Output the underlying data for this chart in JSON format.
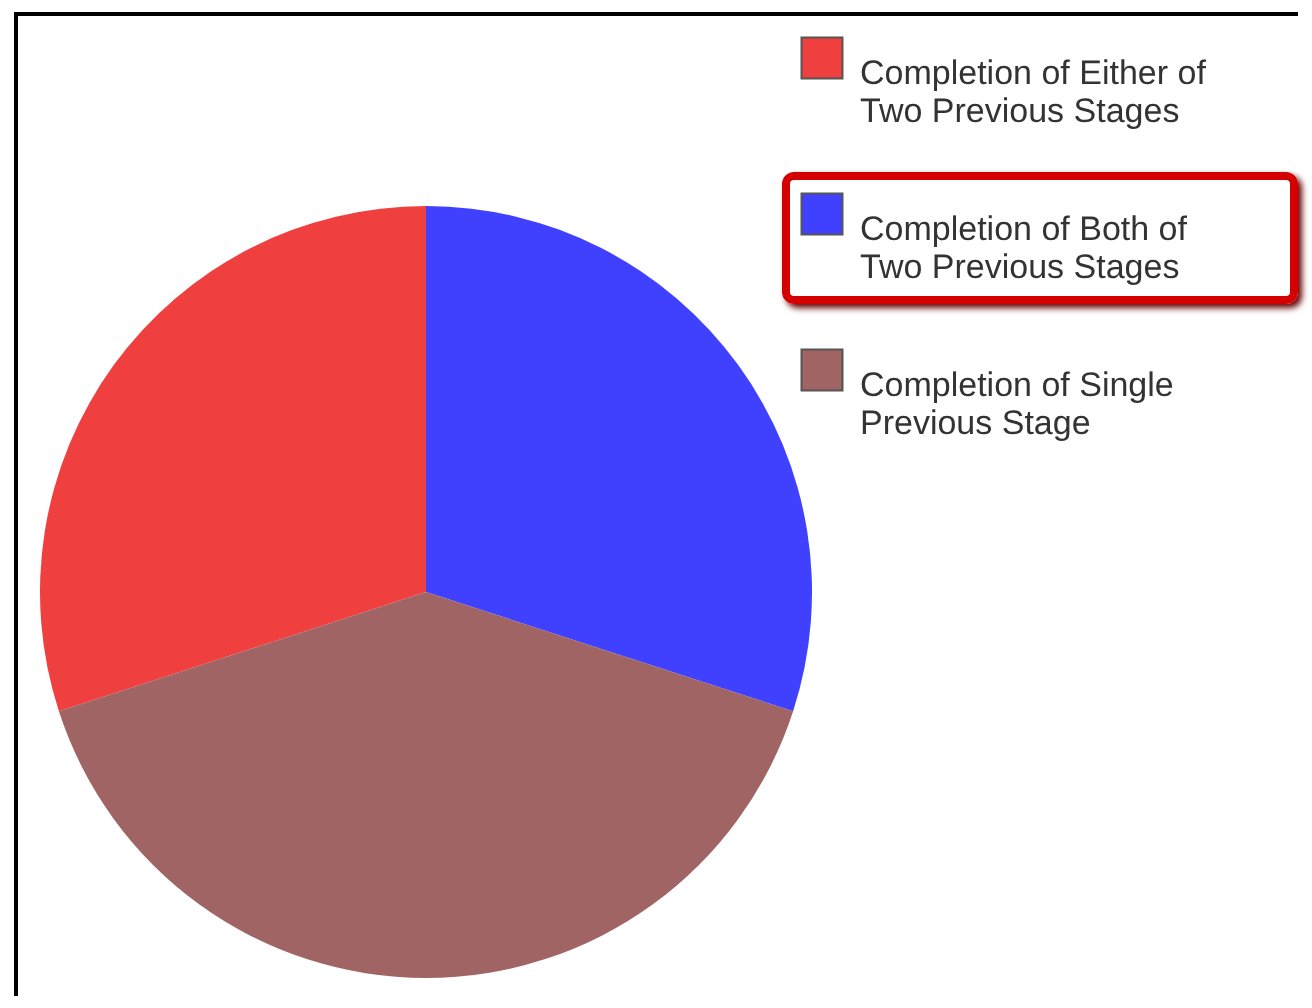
{
  "chart_data": {
    "type": "pie",
    "categories": [
      "Completion of Either of Two Previous Stages",
      "Completion of Both of Two Previous Stages",
      "Completion of Single Previous Stage"
    ],
    "values": [
      30,
      30,
      40
    ],
    "colors": [
      "#ef3f3f",
      "#4040ff",
      "#a06464"
    ],
    "legend": "top right"
  }
}
